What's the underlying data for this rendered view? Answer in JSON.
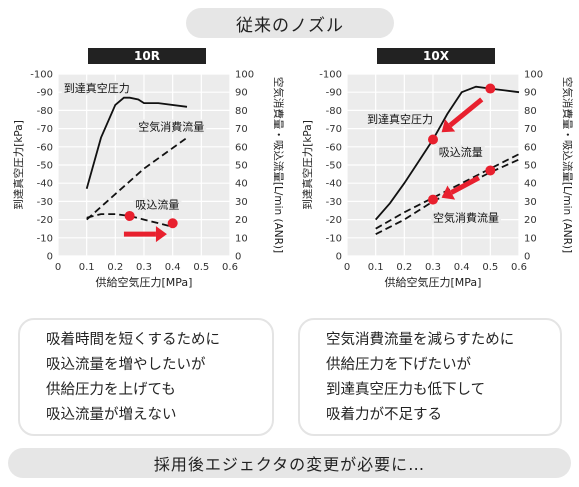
{
  "page_title": "従来のノズル",
  "chart_data": [
    {
      "type": "line",
      "title": "10R",
      "xlabel": "供給空気圧力[MPa]",
      "ylabel_left": "到達真空圧力[kPa]",
      "ylabel_right": "空気消費量・吸込流量[L/min (ANR)]",
      "x_ticks": [
        "0",
        "0.1",
        "0.2",
        "0.3",
        "0.4",
        "0.5",
        "0.6"
      ],
      "y_left_ticks": [
        "-100",
        "-90",
        "-80",
        "-70",
        "-60",
        "-50",
        "-40",
        "-30",
        "-20",
        "-10",
        "0"
      ],
      "y_right_ticks": [
        "100",
        "90",
        "80",
        "70",
        "60",
        "50",
        "40",
        "30",
        "20",
        "10",
        "0"
      ],
      "xlim": [
        0,
        0.6
      ],
      "ylim_left": [
        0,
        -100
      ],
      "ylim_right": [
        0,
        100
      ],
      "grid": true,
      "series": [
        {
          "name": "到達真空圧力",
          "axis": "left",
          "style": "solid",
          "x": [
            0.1,
            0.15,
            0.2,
            0.23,
            0.25,
            0.28,
            0.3,
            0.35,
            0.45
          ],
          "y": [
            -37,
            -65,
            -83,
            -87,
            -87,
            -86,
            -84,
            -84,
            -82
          ]
        },
        {
          "name": "空気消費流量",
          "axis": "right",
          "style": "dashed",
          "x": [
            0.1,
            0.2,
            0.3,
            0.45
          ],
          "y": [
            20,
            34,
            48,
            65
          ]
        },
        {
          "name": "吸込流量",
          "axis": "right",
          "style": "dashed",
          "x": [
            0.1,
            0.15,
            0.2,
            0.25,
            0.3,
            0.35,
            0.4
          ],
          "y": [
            21,
            23,
            23,
            22,
            20,
            18,
            16
          ]
        }
      ],
      "annotations": [
        {
          "type": "point",
          "x": 0.25,
          "y": 22,
          "axis": "right",
          "color": "#e8202e"
        },
        {
          "type": "point",
          "x": 0.4,
          "y": 18,
          "axis": "right",
          "color": "#e8202e"
        },
        {
          "type": "arrow",
          "from": [
            0.23,
            12
          ],
          "to": [
            0.38,
            12
          ],
          "axis": "right",
          "color": "#e8202e"
        }
      ]
    },
    {
      "type": "line",
      "title": "10X",
      "xlabel": "供給空気圧力[MPa]",
      "ylabel_left": "到達真空圧力[kPa]",
      "ylabel_right": "空気消費量・吸込流量[L/min (ANR)]",
      "x_ticks": [
        "0",
        "0.1",
        "0.2",
        "0.3",
        "0.4",
        "0.5",
        "0.6"
      ],
      "y_left_ticks": [
        "-100",
        "-90",
        "-80",
        "-70",
        "-60",
        "-50",
        "-40",
        "-30",
        "-20",
        "-10",
        "0"
      ],
      "y_right_ticks": [
        "100",
        "90",
        "80",
        "70",
        "60",
        "50",
        "40",
        "30",
        "20",
        "10",
        "0"
      ],
      "xlim": [
        0,
        0.6
      ],
      "ylim_left": [
        0,
        -100
      ],
      "ylim_right": [
        0,
        100
      ],
      "grid": true,
      "series": [
        {
          "name": "到達真空圧力",
          "axis": "left",
          "style": "solid",
          "x": [
            0.1,
            0.15,
            0.2,
            0.25,
            0.3,
            0.35,
            0.4,
            0.45,
            0.5,
            0.55,
            0.6
          ],
          "y": [
            -20,
            -29,
            -40,
            -52,
            -64,
            -78,
            -90,
            -93,
            -92,
            -91,
            -90
          ]
        },
        {
          "name": "吸込流量",
          "axis": "right",
          "style": "dashed",
          "x": [
            0.1,
            0.2,
            0.3,
            0.4,
            0.5,
            0.6
          ],
          "y": [
            15,
            24,
            32,
            40,
            48,
            56
          ]
        },
        {
          "name": "空気消費流量",
          "axis": "right",
          "style": "dashed",
          "x": [
            0.1,
            0.2,
            0.3,
            0.4,
            0.5,
            0.6
          ],
          "y": [
            12,
            20,
            30,
            38,
            46,
            53
          ]
        }
      ],
      "annotations": [
        {
          "type": "point",
          "x": 0.5,
          "y": -92,
          "axis": "left",
          "color": "#e8202e"
        },
        {
          "type": "point",
          "x": 0.3,
          "y": -64,
          "axis": "left",
          "color": "#e8202e"
        },
        {
          "type": "point",
          "x": 0.5,
          "y": 47,
          "axis": "right",
          "color": "#e8202e"
        },
        {
          "type": "point",
          "x": 0.3,
          "y": 31,
          "axis": "right",
          "color": "#e8202e"
        },
        {
          "type": "arrow",
          "from": [
            0.47,
            -86
          ],
          "to": [
            0.33,
            -68
          ],
          "axis": "left",
          "color": "#e8202e"
        },
        {
          "type": "arrow",
          "from": [
            0.46,
            43
          ],
          "to": [
            0.33,
            32
          ],
          "axis": "right",
          "color": "#e8202e"
        }
      ]
    }
  ],
  "notes": {
    "left": [
      "吸着時間を短くするために",
      "吸込流量を増やしたいが",
      "供給圧力を上げても",
      "吸込流量が増えない"
    ],
    "right": [
      "空気消費流量を減らすために",
      "供給圧力を下げたいが",
      "到達真空圧力も低下して",
      "吸着力が不足する"
    ]
  },
  "conclusion": "採用後エジェクタの変更が必要に…",
  "colors": {
    "accent_red": "#e8202e",
    "pill_gray": "#e6e6e6",
    "header_dark": "#222222",
    "plot_bg": "#ececec",
    "grid": "#ffffff"
  }
}
